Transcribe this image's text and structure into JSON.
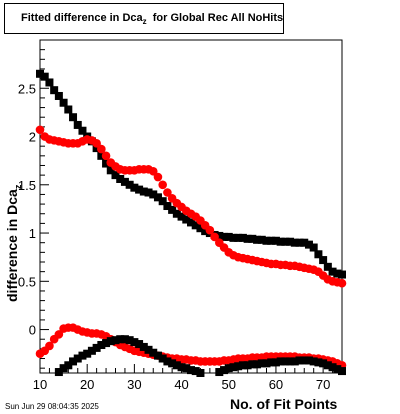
{
  "header": {
    "title_main": "Fitted difference in Dca",
    "title_sub": "z",
    "title_rest": "for Global Rec All NoHits"
  },
  "footer": {
    "timestamp": "Sun Jun 29 08:04:35 2025"
  },
  "chart_data": {
    "type": "scatter",
    "title": "Fitted difference in Dca z for Global Rec All NoHits",
    "xlabel": "No. of Fit Points",
    "ylabel_main": "difference in Dca",
    "ylabel_sub": "z",
    "xlim": [
      10,
      74
    ],
    "ylim": [
      -0.45,
      3.0
    ],
    "xticks": [
      10,
      20,
      30,
      40,
      50,
      60,
      70
    ],
    "yticks": [
      0,
      0.5,
      1,
      1.5,
      2,
      2.5
    ],
    "ytick_labels": [
      "0",
      "0.5",
      "1",
      "1.5",
      "2",
      "2.5"
    ],
    "grid": false,
    "series": [
      {
        "color": "#000000",
        "marker": "square",
        "x": [
          10,
          11,
          12,
          13,
          14,
          15,
          16,
          17,
          18,
          19,
          20,
          21,
          22,
          23,
          24,
          25,
          26,
          27,
          28,
          29,
          30,
          31,
          32,
          33,
          34,
          35,
          36,
          37,
          38,
          39,
          40,
          41,
          42,
          43,
          44,
          45,
          46,
          47,
          48,
          49,
          50,
          51,
          52,
          53,
          54,
          55,
          56,
          57,
          58,
          59,
          60,
          61,
          62,
          63,
          64,
          65,
          66,
          67,
          68,
          69,
          70,
          71,
          72,
          73,
          74
        ],
        "y": [
          2.65,
          2.62,
          2.56,
          2.48,
          2.42,
          2.35,
          2.28,
          2.2,
          2.12,
          2.06,
          2.0,
          1.95,
          1.88,
          1.8,
          1.72,
          1.65,
          1.6,
          1.56,
          1.53,
          1.5,
          1.47,
          1.45,
          1.43,
          1.42,
          1.4,
          1.37,
          1.33,
          1.28,
          1.24,
          1.2,
          1.17,
          1.14,
          1.11,
          1.08,
          1.05,
          1.02,
          1.0,
          0.98,
          0.97,
          0.96,
          0.96,
          0.95,
          0.95,
          0.95,
          0.94,
          0.94,
          0.93,
          0.93,
          0.92,
          0.92,
          0.92,
          0.91,
          0.91,
          0.91,
          0.9,
          0.9,
          0.9,
          0.88,
          0.85,
          0.78,
          0.72,
          0.65,
          0.6,
          0.58,
          0.57
        ]
      },
      {
        "color": "#ff0000",
        "marker": "circle",
        "x": [
          10,
          11,
          12,
          13,
          14,
          15,
          16,
          17,
          18,
          19,
          20,
          21,
          22,
          23,
          24,
          25,
          26,
          27,
          28,
          29,
          30,
          31,
          32,
          33,
          34,
          35,
          36,
          37,
          38,
          39,
          40,
          41,
          42,
          43,
          44,
          45,
          46,
          47,
          48,
          49,
          50,
          51,
          52,
          53,
          54,
          55,
          56,
          57,
          58,
          59,
          60,
          61,
          62,
          63,
          64,
          65,
          66,
          67,
          68,
          69,
          70,
          71,
          72,
          73,
          74
        ],
        "y": [
          2.07,
          2.0,
          1.97,
          1.96,
          1.95,
          1.94,
          1.93,
          1.93,
          1.93,
          1.95,
          1.97,
          1.96,
          1.93,
          1.87,
          1.8,
          1.73,
          1.69,
          1.66,
          1.65,
          1.65,
          1.65,
          1.66,
          1.66,
          1.66,
          1.64,
          1.58,
          1.5,
          1.42,
          1.36,
          1.31,
          1.27,
          1.23,
          1.2,
          1.17,
          1.13,
          1.08,
          1.03,
          0.96,
          0.9,
          0.85,
          0.8,
          0.77,
          0.75,
          0.74,
          0.73,
          0.72,
          0.71,
          0.7,
          0.69,
          0.68,
          0.68,
          0.67,
          0.67,
          0.66,
          0.66,
          0.65,
          0.64,
          0.63,
          0.62,
          0.6,
          0.56,
          0.52,
          0.5,
          0.49,
          0.48
        ]
      },
      {
        "color": "#ff0000",
        "marker": "circle",
        "x": [
          10,
          11,
          12,
          13,
          14,
          15,
          16,
          17,
          18,
          19,
          20,
          21,
          22,
          23,
          24,
          25,
          26,
          27,
          28,
          29,
          30,
          31,
          32,
          33,
          34,
          35,
          36,
          37,
          38,
          39,
          40,
          41,
          42,
          43,
          44,
          45,
          46,
          47,
          48,
          49,
          50,
          51,
          52,
          53,
          54,
          55,
          56,
          57,
          58,
          59,
          60,
          61,
          62,
          63,
          64,
          65,
          66,
          67,
          68,
          69,
          70,
          71,
          72,
          73,
          74
        ],
        "y": [
          -0.25,
          -0.22,
          -0.17,
          -0.1,
          -0.05,
          0.01,
          0.02,
          0.02,
          0.0,
          -0.02,
          -0.03,
          -0.04,
          -0.04,
          -0.05,
          -0.07,
          -0.1,
          -0.13,
          -0.16,
          -0.18,
          -0.2,
          -0.22,
          -0.23,
          -0.24,
          -0.25,
          -0.26,
          -0.27,
          -0.28,
          -0.29,
          -0.3,
          -0.3,
          -0.31,
          -0.31,
          -0.32,
          -0.32,
          -0.33,
          -0.33,
          -0.33,
          -0.33,
          -0.33,
          -0.32,
          -0.32,
          -0.31,
          -0.3,
          -0.3,
          -0.3,
          -0.29,
          -0.29,
          -0.29,
          -0.28,
          -0.28,
          -0.28,
          -0.28,
          -0.28,
          -0.28,
          -0.28,
          -0.29,
          -0.29,
          -0.29,
          -0.3,
          -0.3,
          -0.31,
          -0.32,
          -0.33,
          -0.35,
          -0.37
        ]
      },
      {
        "color": "#000000",
        "marker": "square",
        "x": [
          14,
          15,
          16,
          17,
          18,
          19,
          20,
          21,
          22,
          23,
          24,
          25,
          26,
          27,
          28,
          29,
          30,
          31,
          32,
          33,
          34,
          35,
          36,
          37,
          38,
          39,
          40,
          41,
          42,
          43,
          44
        ],
        "y": [
          -0.44,
          -0.4,
          -0.37,
          -0.33,
          -0.3,
          -0.27,
          -0.25,
          -0.22,
          -0.19,
          -0.16,
          -0.14,
          -0.12,
          -0.11,
          -0.1,
          -0.1,
          -0.11,
          -0.13,
          -0.15,
          -0.18,
          -0.21,
          -0.24,
          -0.27,
          -0.3,
          -0.33,
          -0.35,
          -0.37,
          -0.39,
          -0.4,
          -0.42,
          -0.43,
          -0.45
        ]
      },
      {
        "color": "#000000",
        "marker": "square",
        "x": [
          48,
          49,
          50,
          51,
          52,
          53,
          54,
          55,
          56,
          57,
          58,
          59,
          60,
          61,
          62,
          63,
          64,
          65,
          66,
          67,
          68,
          69,
          70,
          71,
          72,
          73,
          74
        ],
        "y": [
          -0.44,
          -0.42,
          -0.4,
          -0.39,
          -0.38,
          -0.37,
          -0.37,
          -0.36,
          -0.36,
          -0.35,
          -0.35,
          -0.34,
          -0.34,
          -0.33,
          -0.33,
          -0.33,
          -0.33,
          -0.32,
          -0.32,
          -0.32,
          -0.33,
          -0.34,
          -0.35,
          -0.37,
          -0.39,
          -0.41,
          -0.43
        ]
      }
    ]
  }
}
